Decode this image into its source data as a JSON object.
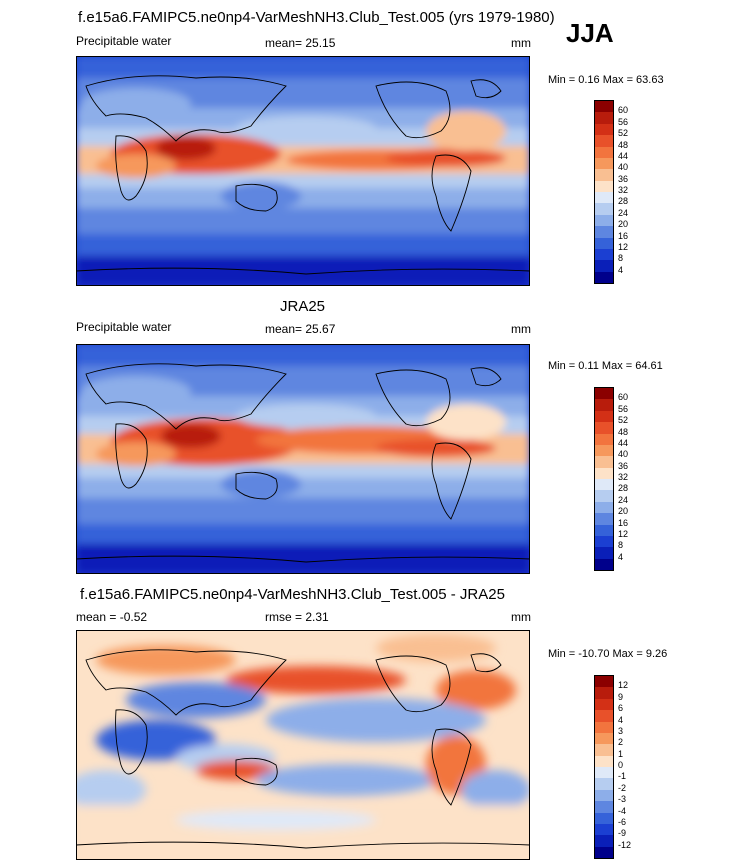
{
  "header": {
    "run_title": "f.e15a6.FAMIPC5.ne0np4-VarMeshNH3.Club_Test.005 (yrs 1979-1980)",
    "season": "JJA"
  },
  "panels": [
    {
      "id": "model",
      "title": "",
      "left_label": "Precipitable water",
      "mean_label": "mean=  25.15",
      "units": "mm",
      "minmax": "Min =   0.16 Max =  63.63"
    },
    {
      "id": "obs",
      "title": "JRA25",
      "left_label": "Precipitable water",
      "mean_label": "mean=  25.67",
      "units": "mm",
      "minmax": "Min =   0.11 Max =  64.61"
    },
    {
      "id": "diff",
      "title": "f.e15a6.FAMIPC5.ne0np4-VarMeshNH3.Club_Test.005 - JRA25",
      "left_label": "mean =  -0.52",
      "mean_label": "rmse =   2.31",
      "units": "mm",
      "minmax": "Min = -10.70 Max =   9.26"
    }
  ],
  "colorbars": {
    "absolute": {
      "labels": [
        "60",
        "56",
        "52",
        "48",
        "44",
        "40",
        "36",
        "32",
        "28",
        "24",
        "20",
        "16",
        "12",
        "8",
        "4"
      ],
      "colors": [
        "#8b0000",
        "#b81c0c",
        "#d33016",
        "#e8512a",
        "#f2743e",
        "#f6985c",
        "#f9bf92",
        "#fde2c8",
        "#dfe9f8",
        "#b6cdf0",
        "#8daee9",
        "#5e86e0",
        "#3562d9",
        "#1b3fd2",
        "#0a1fb8",
        "#00008b"
      ]
    },
    "difference": {
      "labels": [
        "12",
        "9",
        "6",
        "4",
        "3",
        "2",
        "1",
        "0",
        "-1",
        "-2",
        "-3",
        "-4",
        "-6",
        "-9",
        "-12"
      ],
      "colors": [
        "#8b0000",
        "#b81c0c",
        "#d33016",
        "#e8512a",
        "#f2743e",
        "#f6985c",
        "#f9bf92",
        "#fde2c8",
        "#dfe9f8",
        "#b6cdf0",
        "#8daee9",
        "#5e86e0",
        "#3562d9",
        "#1b3fd2",
        "#0a1fb8",
        "#00008b"
      ]
    }
  },
  "chart_data": [
    {
      "type": "heatmap",
      "title": "",
      "variable": "Precipitable water",
      "units": "mm",
      "mean": 25.15,
      "min": 0.16,
      "max": 63.63,
      "contour_levels": [
        4,
        8,
        12,
        16,
        20,
        24,
        28,
        32,
        36,
        40,
        44,
        48,
        52,
        56,
        60
      ]
    },
    {
      "type": "heatmap",
      "title": "JRA25",
      "variable": "Precipitable water",
      "units": "mm",
      "mean": 25.67,
      "min": 0.11,
      "max": 64.61,
      "contour_levels": [
        4,
        8,
        12,
        16,
        20,
        24,
        28,
        32,
        36,
        40,
        44,
        48,
        52,
        56,
        60
      ]
    },
    {
      "type": "heatmap",
      "title": "f.e15a6.FAMIPC5.ne0np4-VarMeshNH3.Club_Test.005 - JRA25",
      "units": "mm",
      "mean": -0.52,
      "rmse": 2.31,
      "min": -10.7,
      "max": 9.26,
      "contour_levels": [
        -12,
        -9,
        -6,
        -4,
        -3,
        -2,
        -1,
        0,
        1,
        2,
        3,
        4,
        6,
        9,
        12
      ]
    }
  ]
}
